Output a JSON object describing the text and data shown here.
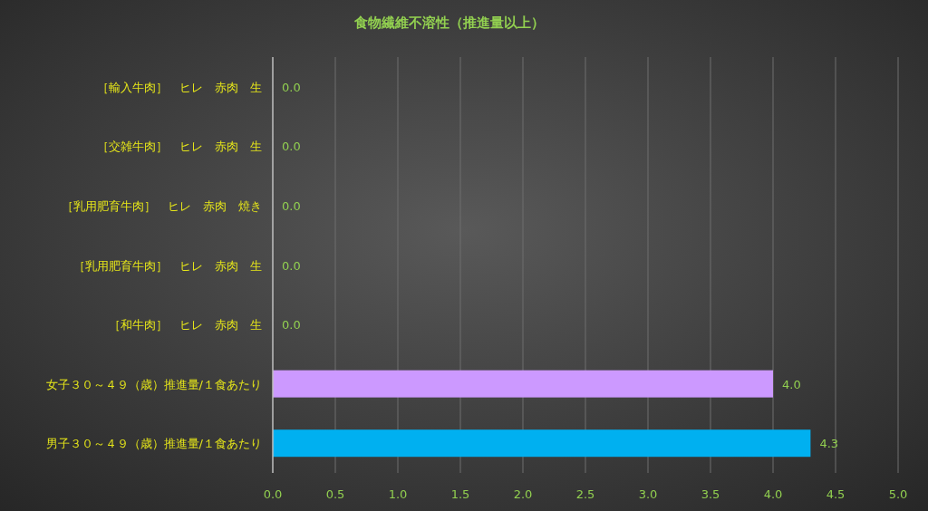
{
  "chart_data": {
    "type": "bar",
    "orientation": "horizontal",
    "title": "食物繊維不溶性（推進量以上）",
    "categories": [
      "［輸入牛肉］　ヒレ　赤肉　生",
      "［交雑牛肉］　ヒレ　赤肉　生",
      "［乳用肥育牛肉］　ヒレ　赤肉　焼き",
      "［乳用肥育牛肉］　ヒレ　赤肉　生",
      "［和牛肉］　ヒレ　赤肉　生",
      "女子３０～４９（歳）推進量/１食あたり",
      "男子３０～４９（歳）推進量/１食あたり"
    ],
    "values": [
      0,
      0,
      0,
      0,
      0,
      4.0,
      4.3
    ],
    "value_labels": [
      "0.0",
      "0.0",
      "0.0",
      "0.0",
      "0.0",
      "4.0",
      "4.3"
    ],
    "colors": [
      "#cc99ff",
      "#cc99ff",
      "#cc99ff",
      "#cc99ff",
      "#cc99ff",
      "#cc99ff",
      "#00b0f0"
    ],
    "xlim": [
      0,
      5
    ],
    "xticks": [
      {
        "value": 0,
        "label": "0.0"
      },
      {
        "value": 0.5,
        "label": "0.5"
      },
      {
        "value": 1,
        "label": "1.0"
      },
      {
        "value": 1.5,
        "label": "1.5"
      },
      {
        "value": 2,
        "label": "2.0"
      },
      {
        "value": 2.5,
        "label": "2.5"
      },
      {
        "value": 3,
        "label": "3.0"
      },
      {
        "value": 3.5,
        "label": "3.5"
      },
      {
        "value": 4,
        "label": "4.0"
      },
      {
        "value": 4.5,
        "label": "4.5"
      },
      {
        "value": 5,
        "label": "5.0"
      }
    ],
    "grid": "x"
  }
}
